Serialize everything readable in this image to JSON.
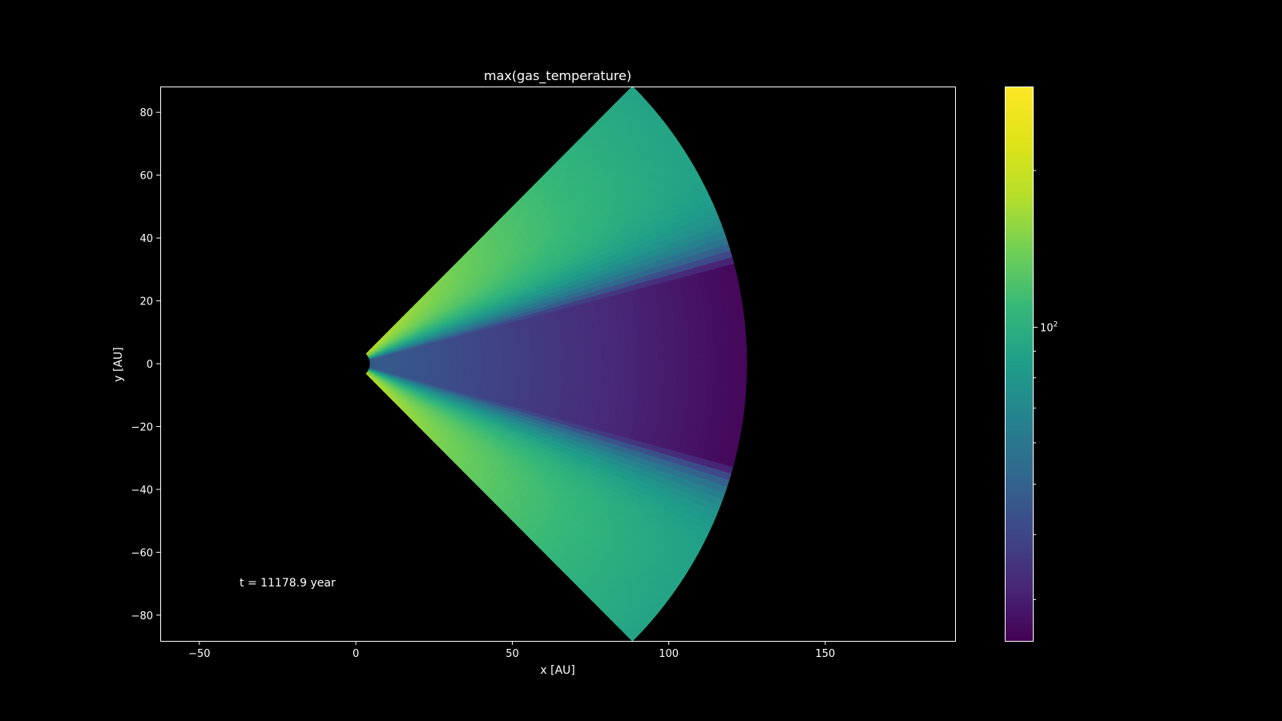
{
  "chart_data": {
    "type": "heatmap",
    "title": "max(gas_temperature)",
    "xlabel": "x [AU]",
    "ylabel": "y [AU]",
    "xlim": [
      -62.5,
      191.5
    ],
    "ylim": [
      -88.2,
      88.2
    ],
    "x_ticks": [
      -50,
      0,
      50,
      100,
      150
    ],
    "y_ticks": [
      -80,
      -60,
      -40,
      -20,
      0,
      20,
      40,
      60,
      80
    ],
    "annotation": "t = 11178.9 year",
    "colormap": "viridis",
    "colorbar": {
      "scale": "log",
      "major_tick_label_base": "10",
      "major_tick_label_exp": "2",
      "major_tick_value": 100,
      "range": [
        25,
        290
      ]
    },
    "field": {
      "geometry": "spherical wedge",
      "r_inner_au": 4.5,
      "r_outer_au": 125,
      "opening_angle_deg": 45,
      "cold_midplane_half_angle_deg": 15,
      "temperature_k": {
        "inner_surface": 290,
        "outer_surface": 90,
        "midplane_inner": 48,
        "midplane_outer": 26
      }
    },
    "grid": false,
    "legend": "none"
  },
  "colors": {
    "background": "#000000",
    "axes": "#ffffff",
    "text": "#ffffff"
  }
}
